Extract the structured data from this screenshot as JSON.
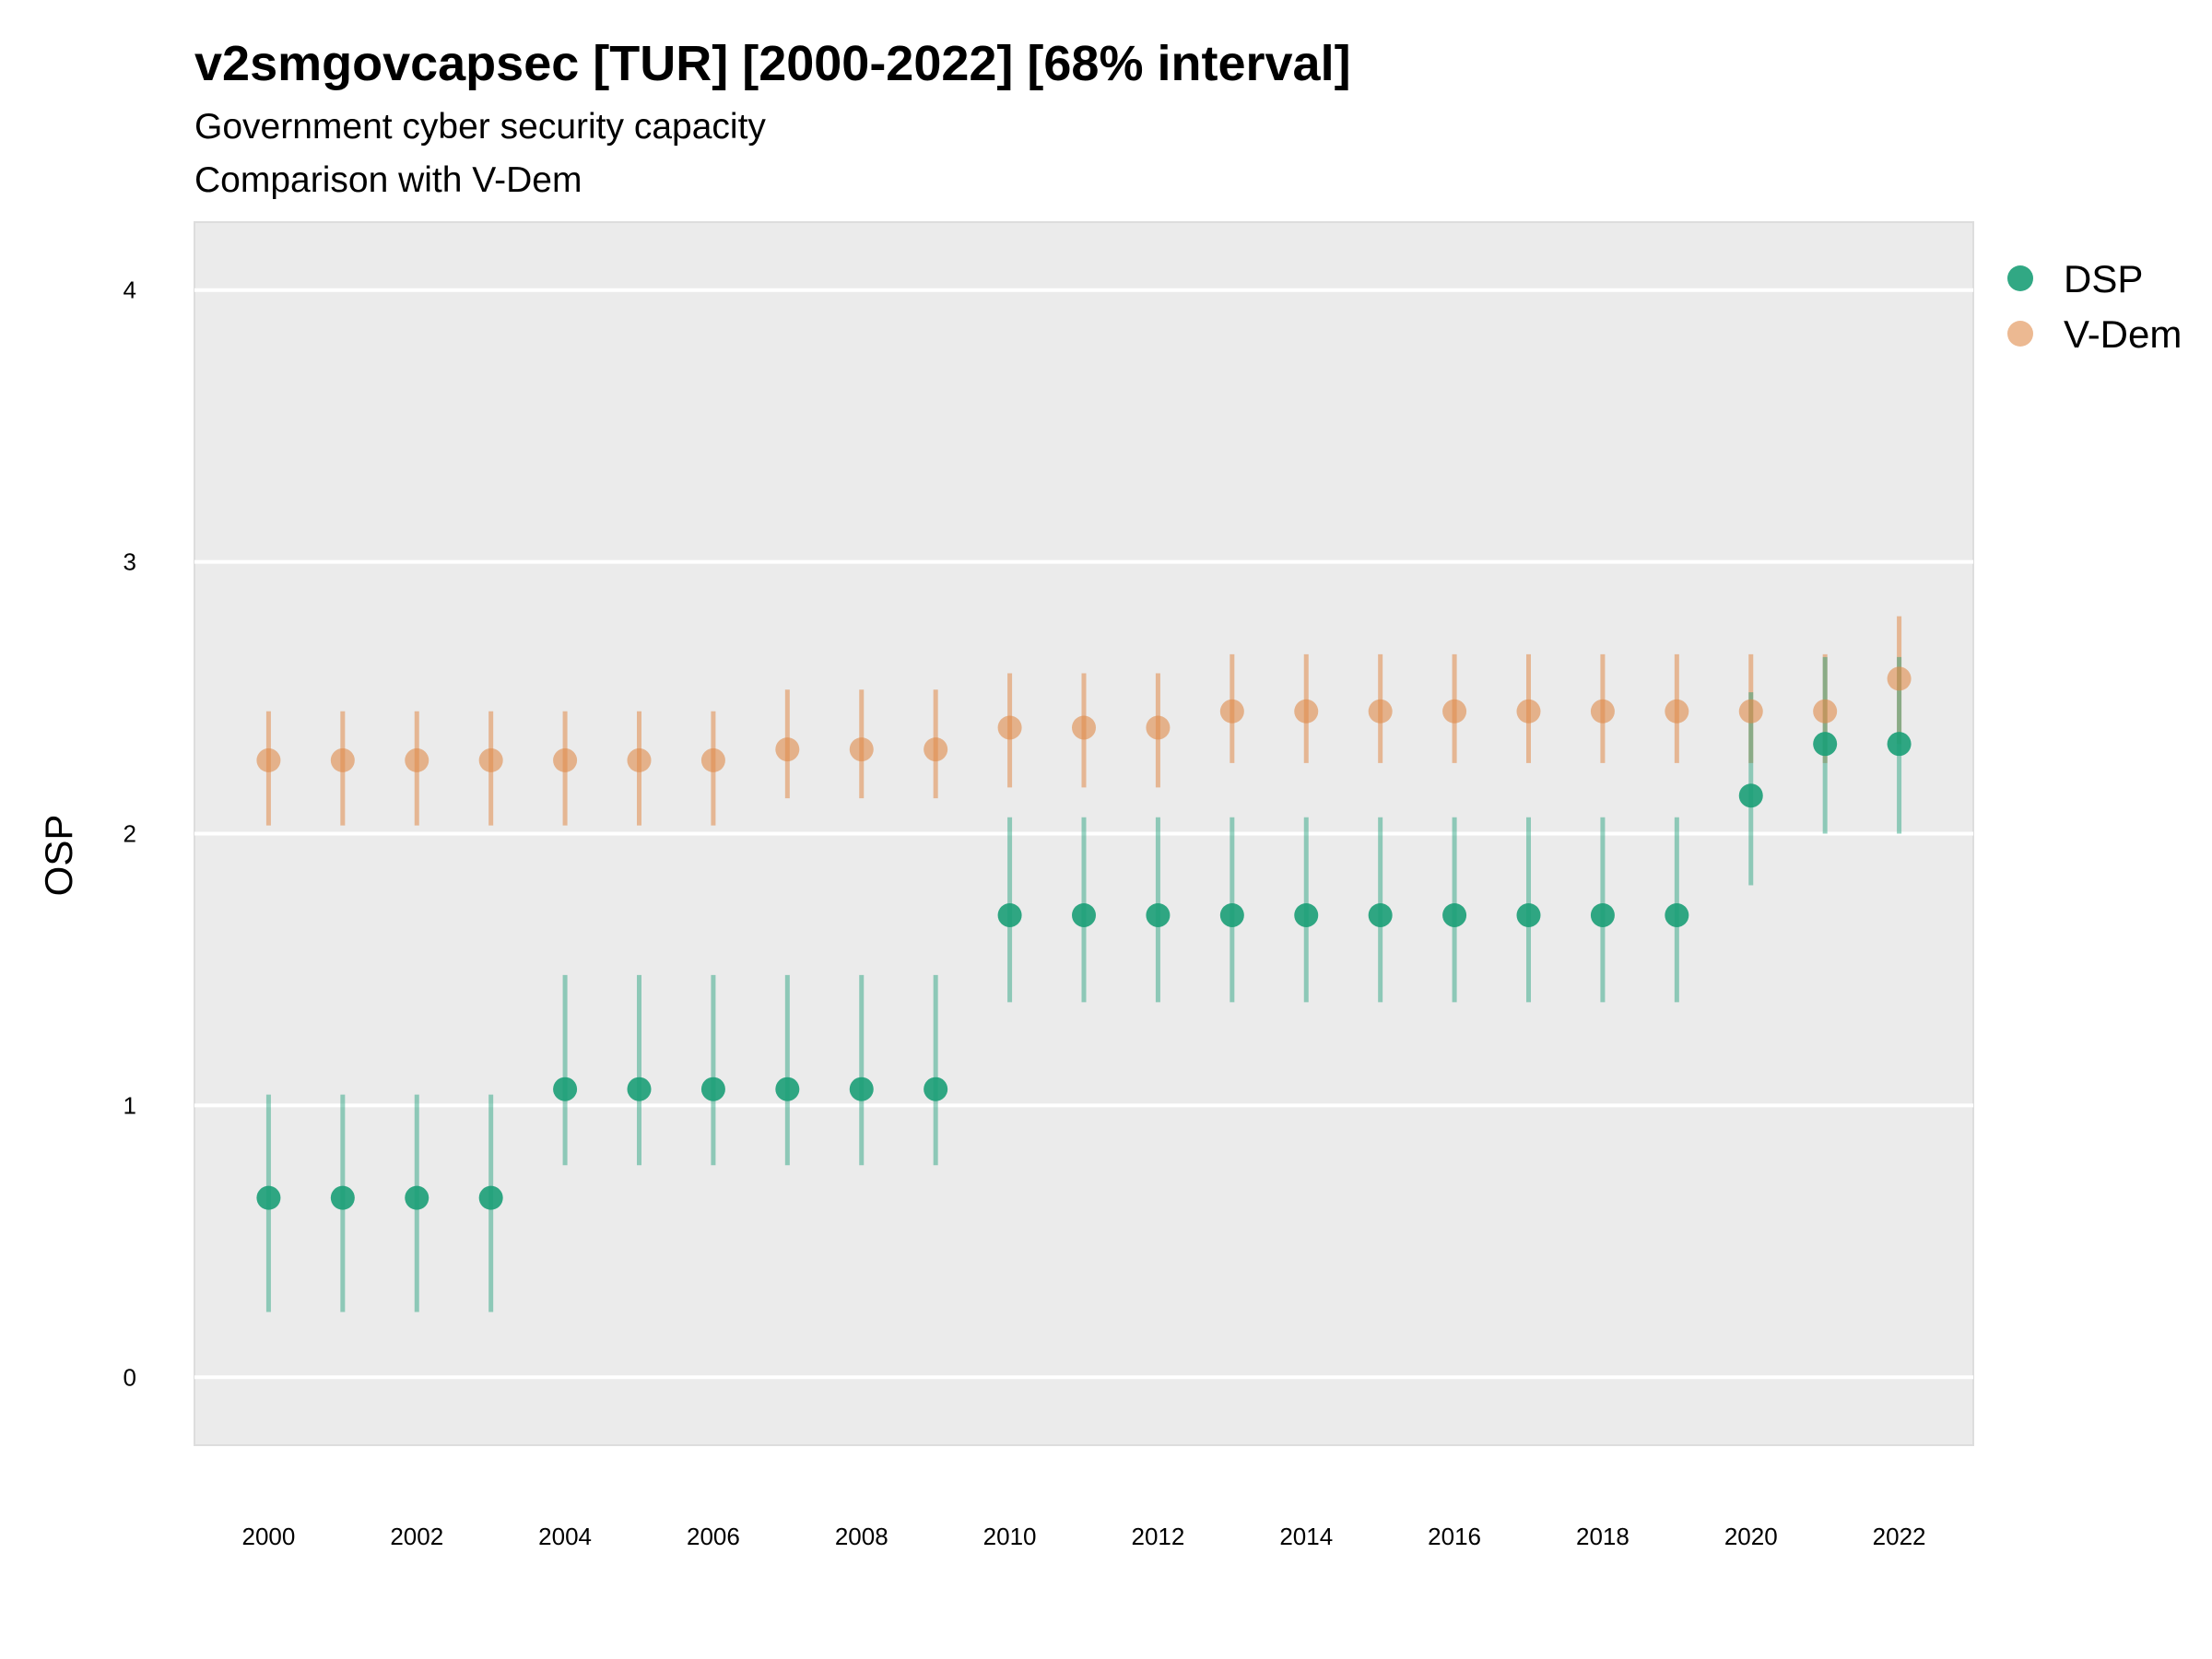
{
  "chart_data": {
    "type": "scatter",
    "title": "v2smgovcapsec [TUR] [2000-2022] [68% interval]",
    "subtitle": "Government cyber security capacity",
    "subtitle2": "Comparison with V-Dem",
    "ylabel": "OSP",
    "xlabel": "",
    "ylim": [
      -0.25,
      4.25
    ],
    "xlim": [
      1999,
      2023
    ],
    "yticks": [
      0,
      1,
      2,
      3,
      4
    ],
    "xticks": [
      2000,
      2002,
      2004,
      2006,
      2008,
      2010,
      2012,
      2014,
      2016,
      2018,
      2020,
      2022
    ],
    "grid": "horizontal",
    "legend_position": "top-right",
    "x": [
      2000,
      2001,
      2002,
      2003,
      2004,
      2005,
      2006,
      2007,
      2008,
      2009,
      2010,
      2011,
      2012,
      2013,
      2014,
      2015,
      2016,
      2017,
      2018,
      2019,
      2020,
      2021,
      2022
    ],
    "series": [
      {
        "name": "V-Dem",
        "color": "#e08a4a",
        "values": [
          2.27,
          2.27,
          2.27,
          2.27,
          2.27,
          2.27,
          2.27,
          2.31,
          2.31,
          2.31,
          2.39,
          2.39,
          2.39,
          2.45,
          2.45,
          2.45,
          2.45,
          2.45,
          2.45,
          2.45,
          2.45,
          2.45,
          2.57
        ],
        "lower": [
          2.03,
          2.03,
          2.03,
          2.03,
          2.03,
          2.03,
          2.03,
          2.13,
          2.13,
          2.13,
          2.17,
          2.17,
          2.17,
          2.26,
          2.26,
          2.26,
          2.26,
          2.26,
          2.26,
          2.26,
          2.26,
          2.26,
          2.33
        ],
        "upper": [
          2.45,
          2.45,
          2.45,
          2.45,
          2.45,
          2.45,
          2.45,
          2.53,
          2.53,
          2.53,
          2.59,
          2.59,
          2.59,
          2.66,
          2.66,
          2.66,
          2.66,
          2.66,
          2.66,
          2.66,
          2.66,
          2.66,
          2.8
        ]
      },
      {
        "name": "DSP",
        "color": "#1b9e77",
        "values": [
          0.66,
          0.66,
          0.66,
          0.66,
          1.06,
          1.06,
          1.06,
          1.06,
          1.06,
          1.06,
          1.7,
          1.7,
          1.7,
          1.7,
          1.7,
          1.7,
          1.7,
          1.7,
          1.7,
          1.7,
          2.14,
          2.33,
          2.33
        ],
        "lower": [
          0.24,
          0.24,
          0.24,
          0.24,
          0.78,
          0.78,
          0.78,
          0.78,
          0.78,
          0.78,
          1.38,
          1.38,
          1.38,
          1.38,
          1.38,
          1.38,
          1.38,
          1.38,
          1.38,
          1.38,
          1.81,
          2.0,
          2.0
        ],
        "upper": [
          1.04,
          1.04,
          1.04,
          1.04,
          1.48,
          1.48,
          1.48,
          1.48,
          1.48,
          1.48,
          2.06,
          2.06,
          2.06,
          2.06,
          2.06,
          2.06,
          2.06,
          2.06,
          2.06,
          2.06,
          2.52,
          2.65,
          2.65
        ]
      }
    ],
    "legend": [
      "DSP",
      "V-Dem"
    ]
  }
}
